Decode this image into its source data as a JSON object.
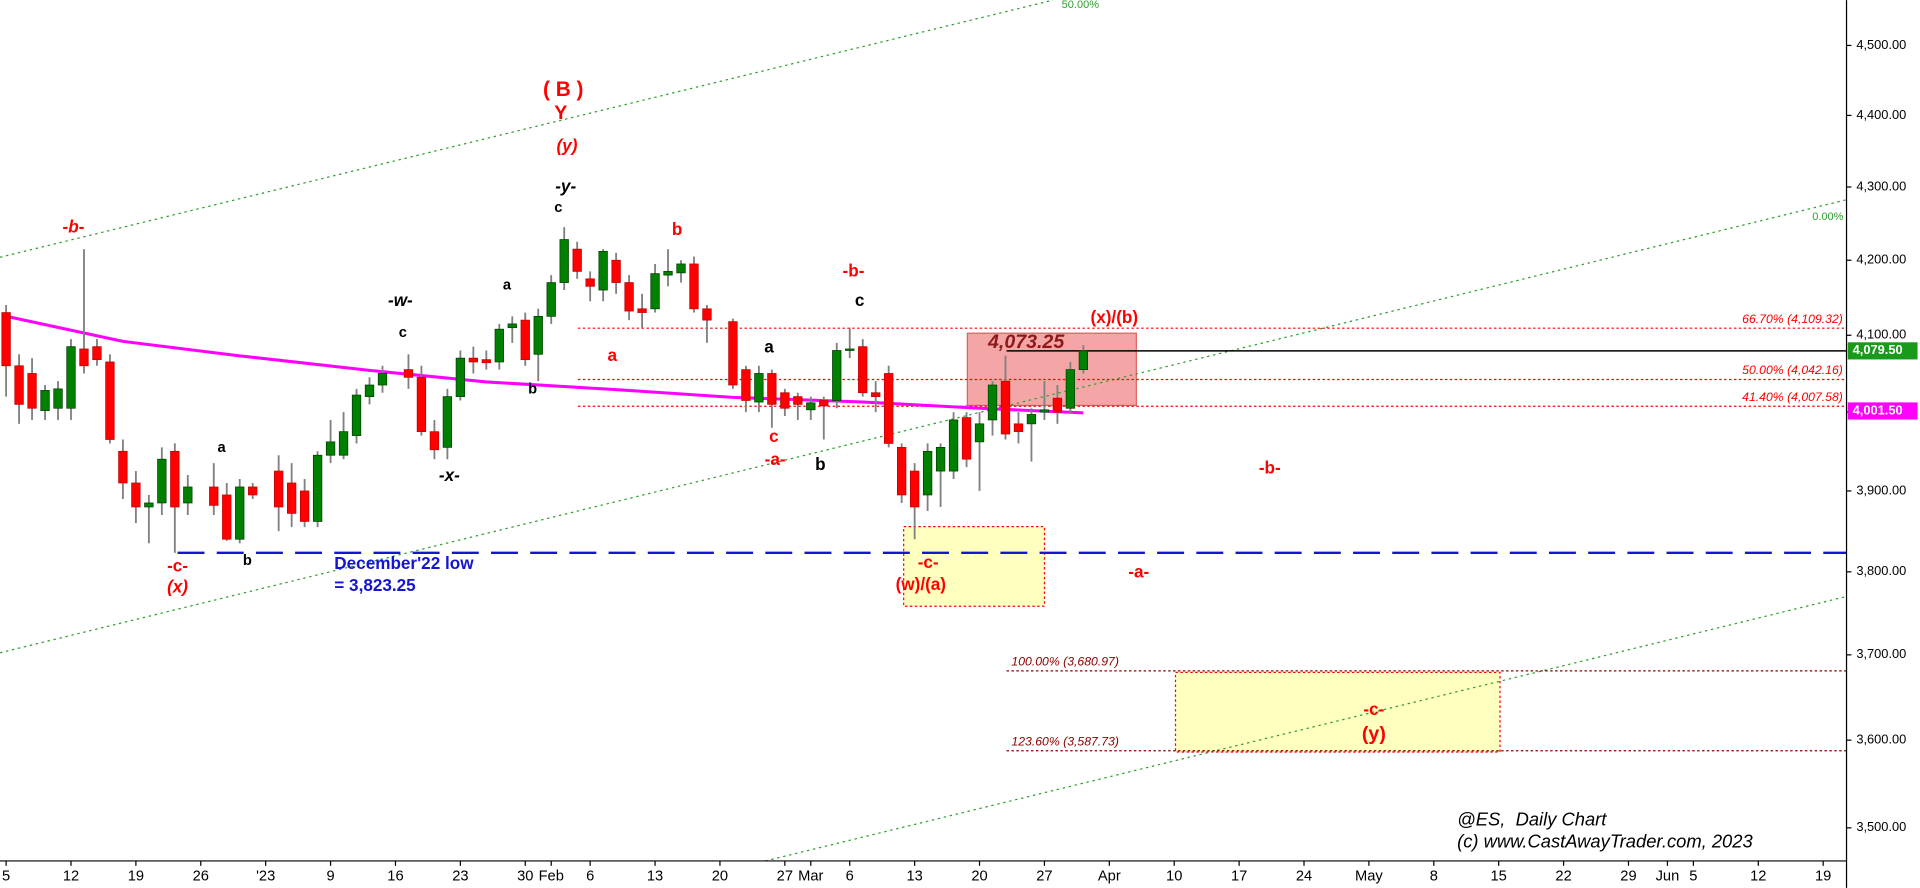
{
  "chart_data": {
    "type": "candlestick",
    "log_scale": true,
    "up_color": "#008000",
    "down_color": "#ff0000",
    "wick_color": "#808080",
    "x": [
      0,
      1,
      2,
      3,
      4,
      5,
      6,
      7,
      8,
      9,
      10,
      11,
      12,
      13,
      14,
      16,
      17,
      18,
      19,
      21,
      22,
      23,
      24,
      25,
      26,
      27,
      28,
      29,
      31,
      32,
      33,
      34,
      35,
      36,
      37,
      38,
      39,
      40,
      41,
      42,
      43,
      44,
      45,
      46,
      47,
      48,
      49,
      50,
      51,
      52,
      53,
      54,
      56,
      57,
      58,
      59,
      60,
      61,
      62,
      63,
      64,
      65,
      66,
      67,
      68,
      69,
      70,
      71,
      72,
      73,
      74,
      75,
      76,
      77,
      78,
      79,
      80,
      81,
      82,
      83
    ],
    "open": [
      4130,
      4060,
      4050,
      4002,
      4005,
      4005,
      4082,
      4085,
      4065,
      3950,
      3910,
      3880,
      3885,
      3950,
      3885,
      3905,
      3895,
      3840,
      3905,
      3925,
      3910,
      3900,
      3862,
      3945,
      3945,
      3970,
      4020,
      4035,
      4055,
      4045,
      3975,
      3955,
      4020,
      4070,
      4068,
      4065,
      4110,
      4120,
      4075,
      4125,
      4170,
      4215,
      4175,
      4160,
      4200,
      4170,
      4135,
      4135,
      4180,
      4183,
      4195,
      4135,
      4118,
      4055,
      4013,
      4050,
      4025,
      4020,
      4003,
      4015,
      4015,
      4080,
      4085,
      4025,
      4050,
      3955,
      3925,
      3895,
      3925,
      3925,
      3993,
      3962,
      3990,
      4040,
      3985,
      3985,
      4000,
      4018,
      4005,
      4055
    ],
    "high": [
      4140,
      4075,
      4070,
      4035,
      4040,
      4095,
      4215,
      4095,
      4075,
      3965,
      3925,
      3895,
      3955,
      3960,
      3920,
      3935,
      3910,
      3915,
      3910,
      3945,
      3935,
      3915,
      3950,
      3990,
      4000,
      4030,
      4045,
      4060,
      4075,
      4060,
      3990,
      4030,
      4080,
      4085,
      4080,
      4115,
      4125,
      4130,
      4135,
      4180,
      4245,
      4225,
      4185,
      4215,
      4210,
      4180,
      4155,
      4195,
      4215,
      4200,
      4205,
      4140,
      4122,
      4060,
      4060,
      4055,
      4030,
      4025,
      4020,
      4020,
      4090,
      4110,
      4095,
      4040,
      4060,
      3960,
      3935,
      3960,
      3960,
      4000,
      4000,
      4000,
      4040,
      4073.25,
      4000,
      4005,
      4040,
      4035,
      4065,
      4087
    ],
    "low": [
      4020,
      3985,
      3990,
      3990,
      3990,
      3990,
      4050,
      4060,
      3960,
      3890,
      3860,
      3835,
      3870,
      3823.25,
      3870,
      3870,
      3838,
      3835,
      3890,
      3850,
      3855,
      3855,
      3855,
      3935,
      3940,
      3960,
      4010,
      4025,
      4030,
      3970,
      3940,
      3940,
      4015,
      4050,
      4055,
      4055,
      4090,
      4060,
      4040,
      4115,
      4160,
      4175,
      4145,
      4145,
      4155,
      4120,
      4110,
      4130,
      4165,
      4170,
      4130,
      4090,
      4030,
      4000,
      4000,
      3980,
      3995,
      3990,
      3990,
      3965,
      4005,
      4070,
      4020,
      4000,
      3955,
      3885,
      3840,
      3875,
      3880,
      3915,
      3930,
      3900,
      3970,
      3965,
      3960,
      3937,
      3990,
      3985,
      3998,
      4050
    ],
    "close": [
      4060,
      4010,
      4005,
      4028,
      4030,
      4085,
      4060,
      4068,
      3965,
      3910,
      3880,
      3885,
      3940,
      3880,
      3905,
      3882,
      3840,
      3905,
      3895,
      3880,
      3872,
      3862,
      3945,
      3962,
      3975,
      4022,
      4035,
      4050,
      4045,
      3975,
      3952,
      4020,
      4070,
      4065,
      4064,
      4108,
      4115,
      4068,
      4125,
      4170,
      4228,
      4185,
      4165,
      4212,
      4170,
      4132,
      4130,
      4182,
      4185,
      4195,
      4135,
      4120,
      4035,
      4015,
      4050,
      4010,
      4005,
      4010,
      4012,
      4008,
      4080,
      4082,
      4025,
      4020,
      3960,
      3895,
      3880,
      3950,
      3955,
      3990,
      3940,
      3985,
      4035,
      3972,
      3975,
      3997,
      4003,
      4000,
      4055,
      4079.5
    ],
    "moving_average": {
      "color": "#ff00ff",
      "x": [
        0,
        9,
        18,
        28,
        37,
        47,
        56,
        66,
        75,
        83
      ],
      "values": [
        4125,
        4092,
        4073,
        4054,
        4039,
        4029,
        4019,
        4013,
        4005,
        3999
      ]
    },
    "xlim": [
      -0.47,
      141.8
    ],
    "xticks": [
      {
        "value": 0,
        "label": "5"
      },
      {
        "value": 5,
        "label": "12"
      },
      {
        "value": 10,
        "label": "19"
      },
      {
        "value": 15,
        "label": "26"
      },
      {
        "value": 20,
        "label": "'23"
      },
      {
        "value": 25,
        "label": "9"
      },
      {
        "value": 30,
        "label": "16"
      },
      {
        "value": 35,
        "label": "23"
      },
      {
        "value": 40,
        "label": "30"
      },
      {
        "value": 42,
        "label": "Feb"
      },
      {
        "value": 45,
        "label": "6"
      },
      {
        "value": 50,
        "label": "13"
      },
      {
        "value": 55,
        "label": "20"
      },
      {
        "value": 60,
        "label": "27"
      },
      {
        "value": 62,
        "label": "Mar"
      },
      {
        "value": 65,
        "label": "6"
      },
      {
        "value": 70,
        "label": "13"
      },
      {
        "value": 75,
        "label": "20"
      },
      {
        "value": 80,
        "label": "27"
      },
      {
        "value": 85,
        "label": "Apr"
      },
      {
        "value": 90,
        "label": "10"
      },
      {
        "value": 95,
        "label": "17"
      },
      {
        "value": 100,
        "label": "24"
      },
      {
        "value": 105,
        "label": "May"
      },
      {
        "value": 110,
        "label": "8"
      },
      {
        "value": 115,
        "label": "15"
      },
      {
        "value": 120,
        "label": "22"
      },
      {
        "value": 125,
        "label": "29"
      },
      {
        "value": 128,
        "label": "Jun"
      },
      {
        "value": 130,
        "label": "5"
      },
      {
        "value": 135,
        "label": "12"
      },
      {
        "value": 140,
        "label": "19"
      }
    ],
    "ylim": [
      3463,
      4566
    ],
    "yticks": [
      {
        "value": 3500,
        "label": "3,500.00"
      },
      {
        "value": 3600,
        "label": "3,600.00"
      },
      {
        "value": 3700,
        "label": "3,700.00"
      },
      {
        "value": 3800,
        "label": "3,800.00"
      },
      {
        "value": 3900,
        "label": "3,900.00"
      },
      {
        "value": 4000,
        "label": "4,000.00"
      },
      {
        "value": 4100,
        "label": "4,100.00"
      },
      {
        "value": 4200,
        "label": "4,200.00"
      },
      {
        "value": 4300,
        "label": "4,300.00"
      },
      {
        "value": 4400,
        "label": "4,400.00"
      },
      {
        "value": 4500,
        "label": "4,500.00"
      }
    ],
    "last_price": {
      "value": 4079.5,
      "label": "4,079.50",
      "color": "#1a9a1a"
    },
    "ma_last": {
      "value": 4001.5,
      "label": "4,001.50",
      "color": "#ff00ff"
    },
    "december_low": {
      "value": 3823.25,
      "label": "= 3,823.25",
      "color": "#1515d0"
    },
    "fib_upper": [
      {
        "value": 4109.32,
        "label": "66.70% (4,109.32)"
      },
      {
        "value": 4042.16,
        "label": "50.00% (4,042.16)"
      },
      {
        "value": 4007.58,
        "label": "41.40% (4,007.58)"
      }
    ],
    "fib_lower": [
      {
        "value": 3680.97,
        "label": "100.00% (3,680.97)"
      },
      {
        "value": 3587.73,
        "label": "123.60% (3,587.73)"
      }
    ],
    "channel_labels": [
      "50.00%",
      "0.00%"
    ],
    "annotations": [
      "( B )",
      "Y",
      "(y)",
      "-y-",
      "c",
      "-b-",
      "-w-",
      "c",
      "a",
      "b",
      "-x-",
      "a",
      "b",
      "-c-",
      "(x)",
      "December'22 low",
      "b",
      "a",
      "-b-",
      "c",
      "a",
      "c",
      "-a-",
      "b",
      "4,073.25",
      "(x)/(b)",
      "-c-",
      "(w)/(a)",
      "-b-",
      "-a-",
      "-c-",
      "(y)",
      "@ES,  Daily Chart",
      "(c) www.CastAwayTrader.com, 2023"
    ]
  }
}
